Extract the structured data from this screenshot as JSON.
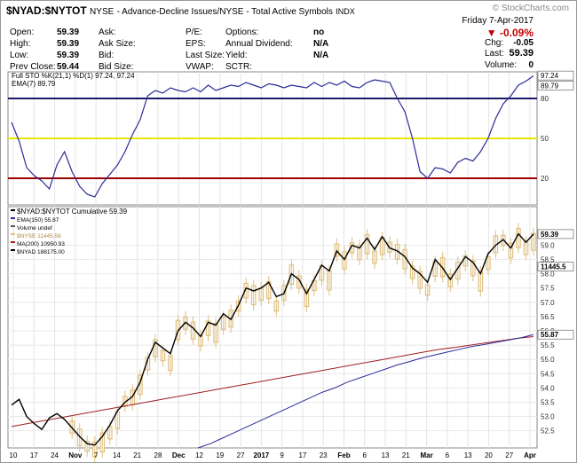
{
  "header": {
    "symbol": "$NYAD:$NYTOT",
    "exchange": "NYSE",
    "description": "- Advance-Decline Issues/NYSE - Total Active Symbols",
    "type": "INDX",
    "watermark": "© StockCharts.com",
    "date": "Friday  7-Apr-2017",
    "change_pct": "-0.09%",
    "chg_label": "Chg:",
    "chg_value": "-0.05",
    "last_label": "Last:",
    "last_value": "59.39",
    "volume_label": "Volume:",
    "volume_value": "0",
    "quote": [
      [
        {
          "label": "Open:",
          "value": "59.39"
        },
        {
          "label": "Ask:",
          "value": ""
        },
        {
          "label": "P/E:",
          "value": ""
        },
        {
          "label": "Options:",
          "value": "no"
        }
      ],
      [
        {
          "label": "High:",
          "value": "59.39"
        },
        {
          "label": "Ask Size:",
          "value": ""
        },
        {
          "label": "EPS:",
          "value": ""
        },
        {
          "label": "Annual Dividend:",
          "value": "N/A"
        }
      ],
      [
        {
          "label": "Low:",
          "value": "59.39"
        },
        {
          "label": "Bid:",
          "value": ""
        },
        {
          "label": "Last Size:",
          "value": ""
        },
        {
          "label": "Yield:",
          "value": "N/A"
        }
      ],
      [
        {
          "label": "Prev Close:",
          "value": "59.44"
        },
        {
          "label": "Bid Size:",
          "value": ""
        },
        {
          "label": "VWAP:",
          "value": ""
        },
        {
          "label": "SCTR:",
          "value": ""
        }
      ]
    ]
  },
  "chart_data": [
    {
      "type": "line",
      "panel": "stochastics",
      "legend": [
        "Full STO %K(21,1) %D(1) 97.24, 97.24",
        "EMA(7) 89.79"
      ],
      "ylim": [
        0,
        100
      ],
      "yticks": [
        20,
        50,
        80
      ],
      "last_labels": [
        "97.24",
        "89.79"
      ],
      "reference_lines": [
        {
          "value": 80,
          "color": "#1a1a66"
        },
        {
          "value": 50,
          "color": "#e6e600"
        },
        {
          "value": 20,
          "color": "#a00000"
        }
      ],
      "colors": {
        "sto": "#2b2b99"
      },
      "series": [
        {
          "name": "Full STO %K(21,1) %D(1) 97.24, 97.24",
          "values": [
            62,
            48,
            28,
            22,
            18,
            12,
            30,
            40,
            25,
            14,
            8,
            6,
            16,
            23,
            30,
            40,
            53,
            64,
            82,
            86,
            84,
            88,
            86,
            85,
            88,
            85,
            90,
            86,
            88,
            90,
            89,
            92,
            90,
            88,
            91,
            90,
            88,
            90,
            89,
            88,
            92,
            89,
            92,
            90,
            93,
            89,
            88,
            92,
            94,
            93,
            92,
            80,
            70,
            50,
            25,
            20,
            28,
            27,
            24,
            32,
            35,
            33,
            40,
            50,
            65,
            76,
            82,
            90,
            93,
            97
          ]
        }
      ]
    },
    {
      "type": "line",
      "panel": "price",
      "legend": [
        "$NYAD:$NYTOT Cumulative 59.39",
        "EMA(150) 55.87",
        "Volume undef",
        "$NYSE 11445.58",
        "MA(200) 10950.93",
        "$NYAD 188175.00"
      ],
      "ylim": [
        51.9,
        60.35
      ],
      "yticks": [
        52.5,
        53.0,
        53.5,
        54.0,
        54.5,
        55.0,
        55.5,
        56.0,
        56.5,
        57.0,
        57.5,
        58.0,
        58.5,
        59.0
      ],
      "last_labels": [
        "59.39",
        "11445.5",
        "55.87"
      ],
      "x_tick_labels": [
        "10",
        "17",
        "24",
        "Nov",
        "7",
        "14",
        "21",
        "28",
        "Dec",
        "12",
        "19",
        "27",
        "2017",
        "9",
        "17",
        "23",
        "Feb",
        "6",
        "13",
        "21",
        "Mar",
        "6",
        "13",
        "20",
        "27",
        "Apr"
      ],
      "colors": {
        "nyad": "#000000",
        "ema": "#2b2b99",
        "ma": "#a02020",
        "nyse": "#e0c080"
      },
      "series": [
        {
          "name": "$NYAD:$NYTOT Cumulative 59.39",
          "values": [
            53.4,
            53.6,
            53.0,
            52.75,
            52.55,
            52.95,
            53.1,
            52.9,
            52.6,
            52.3,
            52.05,
            52.0,
            52.3,
            52.7,
            53.2,
            53.5,
            53.7,
            54.2,
            55.0,
            55.6,
            55.4,
            55.2,
            56.0,
            56.3,
            56.1,
            55.8,
            56.3,
            56.2,
            56.6,
            56.4,
            56.9,
            57.5,
            57.4,
            57.5,
            57.7,
            57.2,
            57.3,
            58.0,
            57.8,
            57.3,
            57.8,
            58.3,
            58.1,
            58.8,
            58.5,
            59.0,
            58.9,
            59.25,
            58.85,
            59.3,
            58.9,
            58.8,
            58.6,
            58.2,
            58.0,
            57.7,
            58.5,
            58.2,
            57.8,
            58.2,
            58.6,
            58.4,
            58.0,
            58.7,
            59.0,
            59.2,
            58.9,
            59.4,
            59.1,
            59.39
          ]
        },
        {
          "name": "EMA(150) 55.87",
          "values": [
            null,
            null,
            null,
            null,
            null,
            null,
            null,
            null,
            null,
            null,
            null,
            null,
            null,
            null,
            null,
            51.9,
            52.05,
            52.25,
            52.45,
            52.65,
            52.85,
            53.05,
            53.25,
            53.45,
            53.65,
            53.85,
            54.0,
            54.2,
            54.35,
            54.5,
            54.65,
            54.8,
            54.92,
            55.05,
            55.15,
            55.25,
            55.35,
            55.45,
            55.52,
            55.6,
            55.68,
            55.76,
            55.87
          ]
        },
        {
          "name": "MA(200) 10950.93",
          "values": [
            52.65,
            52.75,
            52.85,
            52.95,
            53.05,
            53.15,
            53.25,
            53.35,
            53.45,
            53.55,
            53.65,
            53.75,
            53.85,
            53.95,
            54.05,
            54.15,
            54.25,
            54.35,
            54.45,
            54.55,
            54.65,
            54.75,
            54.85,
            54.95,
            55.05,
            55.15,
            55.25,
            55.35,
            55.42,
            55.5,
            55.58,
            55.66,
            55.74,
            55.8
          ]
        }
      ]
    }
  ]
}
